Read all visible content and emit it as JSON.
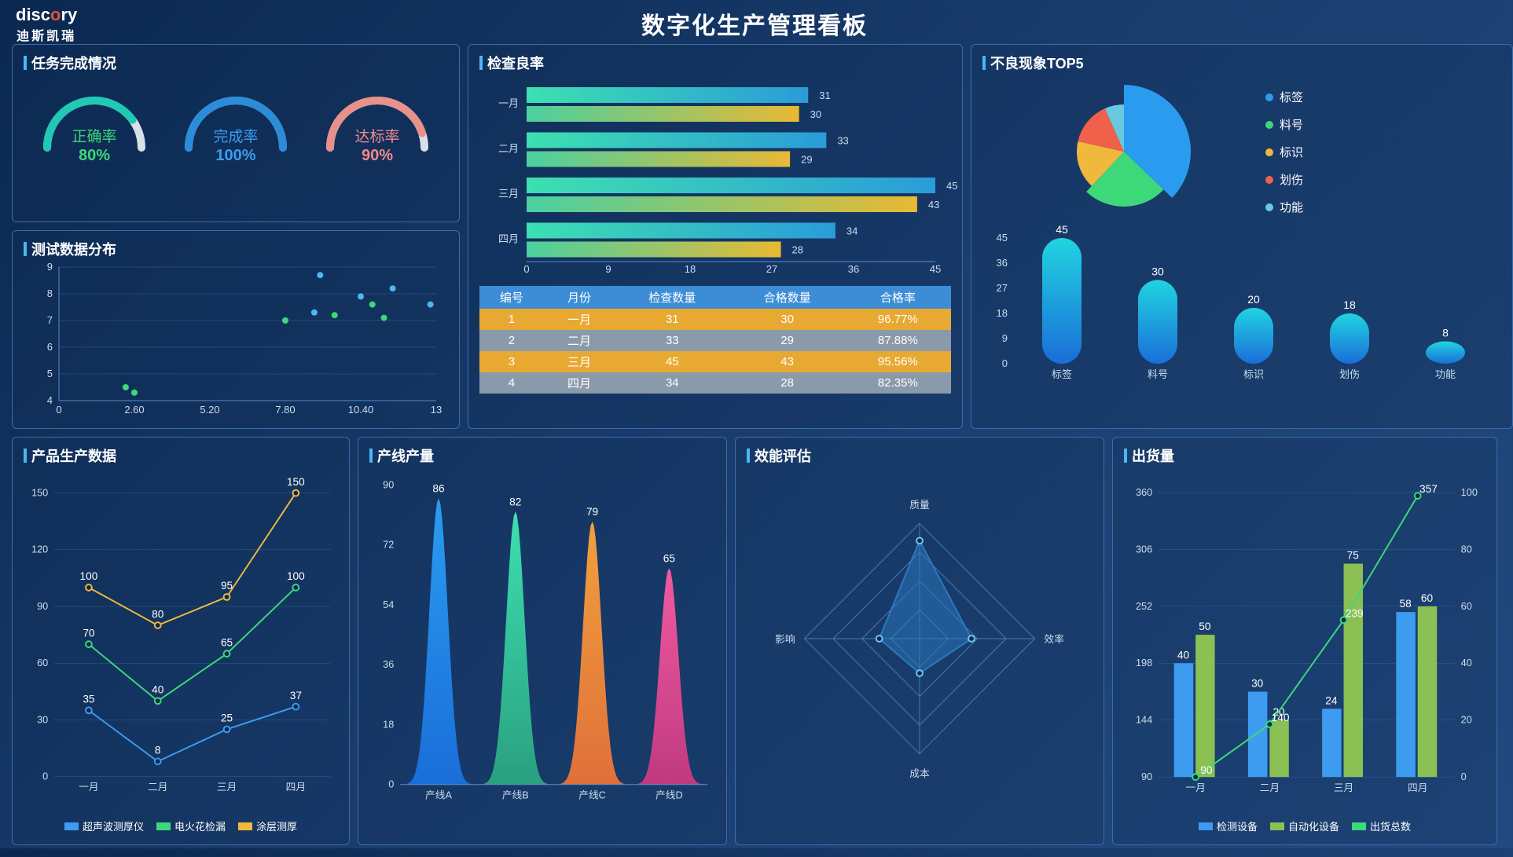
{
  "header": {
    "title": "数字化生产管理看板",
    "logo": "disc",
    "logo_accent": "o",
    "logo_end": "ry",
    "logo_sub": "迪斯凯瑞"
  },
  "taskPanel": {
    "title": "任务完成情况",
    "gauges": [
      {
        "label": "正确率",
        "value": "80%",
        "pct": 80,
        "color": "#3dd87a",
        "arc": "#1fc9b3"
      },
      {
        "label": "完成率",
        "value": "100%",
        "pct": 100,
        "color": "#3d9cf0",
        "arc": "#2b8dd9"
      },
      {
        "label": "达标率",
        "value": "90%",
        "pct": 90,
        "color": "#f08a8a",
        "arc": "#e8908a"
      }
    ]
  },
  "scatterPanel": {
    "title": "测试数据分布",
    "xlim": [
      0,
      13
    ],
    "xticks": [
      0,
      2.6,
      5.2,
      7.8,
      10.4,
      13
    ],
    "ylim": [
      4,
      9
    ],
    "yticks": [
      4,
      5,
      6,
      7,
      8,
      9
    ],
    "series": [
      {
        "color": "#3dd87a",
        "points": [
          [
            2.3,
            4.5
          ],
          [
            2.6,
            4.3
          ],
          [
            7.8,
            7.0
          ],
          [
            9.5,
            7.2
          ],
          [
            11.2,
            7.1
          ],
          [
            10.8,
            7.6
          ]
        ]
      },
      {
        "color": "#4ab8f0",
        "points": [
          [
            8.8,
            7.3
          ],
          [
            9.0,
            8.7
          ],
          [
            10.4,
            7.9
          ],
          [
            11.5,
            8.2
          ],
          [
            12.8,
            7.6
          ]
        ]
      }
    ]
  },
  "qualityPanel": {
    "title": "检查良率",
    "months": [
      "一月",
      "二月",
      "三月",
      "四月"
    ],
    "series": [
      {
        "gradient": [
          "#3de0b0",
          "#2a9cd9"
        ],
        "values": [
          31,
          33,
          45,
          34
        ]
      },
      {
        "gradient": [
          "#4ad0a0",
          "#e8b933"
        ],
        "values": [
          30,
          29,
          43,
          28
        ]
      }
    ],
    "xmax": 45,
    "xticks": [
      0,
      9,
      18,
      27,
      36,
      45
    ],
    "table": {
      "headers": [
        "编号",
        "月份",
        "检查数量",
        "合格数量",
        "合格率"
      ],
      "rows": [
        [
          "1",
          "一月",
          "31",
          "30",
          "96.77%"
        ],
        [
          "2",
          "二月",
          "33",
          "29",
          "87.88%"
        ],
        [
          "3",
          "三月",
          "45",
          "43",
          "95.56%"
        ],
        [
          "4",
          "四月",
          "34",
          "28",
          "82.35%"
        ]
      ]
    }
  },
  "defectPanel": {
    "title": "不良现象TOP5",
    "pie": [
      {
        "label": "标签",
        "value": 45,
        "color": "#2a9cf0"
      },
      {
        "label": "料号",
        "value": 30,
        "color": "#3dd87a"
      },
      {
        "label": "标识",
        "value": 20,
        "color": "#f0b93d"
      },
      {
        "label": "划伤",
        "value": 18,
        "color": "#f0604a"
      },
      {
        "label": "功能",
        "value": 8,
        "color": "#6ac8e0"
      }
    ],
    "barYticks": [
      0,
      9,
      18,
      27,
      36,
      45
    ],
    "barGradient": [
      "#20d4e0",
      "#1a6ed9"
    ]
  },
  "productPanel": {
    "title": "产品生产数据",
    "categories": [
      "一月",
      "二月",
      "三月",
      "四月"
    ],
    "ylim": [
      0,
      150
    ],
    "yticks": [
      0,
      30,
      60,
      90,
      120,
      150
    ],
    "legend": [
      "超声波测厚仪",
      "电火花检漏",
      "涂层测厚"
    ],
    "series": [
      {
        "color": "#3d9cf0",
        "values": [
          35,
          8,
          25,
          37
        ]
      },
      {
        "color": "#3dd87a",
        "values": [
          70,
          40,
          65,
          100
        ]
      },
      {
        "color": "#f0b93d",
        "values": [
          100,
          80,
          95,
          150
        ]
      }
    ]
  },
  "linePanel": {
    "title": "产线产量",
    "categories": [
      "产线A",
      "产线B",
      "产线C",
      "产线D"
    ],
    "values": [
      86,
      82,
      79,
      65
    ],
    "ylim": [
      0,
      90
    ],
    "yticks": [
      0,
      18,
      36,
      54,
      72,
      90
    ],
    "gradients": [
      [
        "#2a9cf0",
        "#1a6ed9"
      ],
      [
        "#3de0b0",
        "#2aa080"
      ],
      [
        "#f0a03d",
        "#e0703a"
      ],
      [
        "#f05aa0",
        "#c03a80"
      ]
    ]
  },
  "radarPanel": {
    "title": "效能评估",
    "axes": [
      "质量",
      "效率",
      "成本",
      "影响"
    ],
    "values": [
      85,
      45,
      30,
      35
    ],
    "max": 100,
    "fillColor": "#2a7ac0"
  },
  "shipPanel": {
    "title": "出货量",
    "categories": [
      "一月",
      "二月",
      "三月",
      "四月"
    ],
    "y1lim": [
      90,
      360
    ],
    "y1ticks": [
      90,
      144,
      198,
      252,
      306,
      360
    ],
    "y2lim": [
      0,
      100
    ],
    "y2ticks": [
      0,
      20,
      40,
      60,
      80,
      100
    ],
    "bars": [
      {
        "label": "检测设备",
        "color": "#3d9cf0",
        "values": [
          40,
          30,
          24,
          58
        ]
      },
      {
        "label": "自动化设备",
        "color": "#8ac054",
        "values": [
          50,
          20,
          75,
          60
        ]
      }
    ],
    "line": {
      "label": "出货总数",
      "color": "#3dd87a",
      "values": [
        90,
        140,
        239,
        357
      ]
    }
  }
}
